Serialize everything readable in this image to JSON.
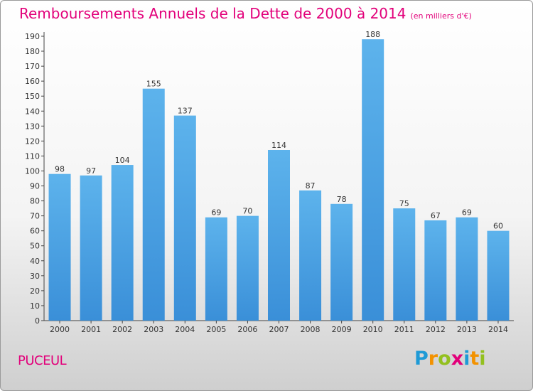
{
  "header": {
    "title": "Remboursements Annuels de la Dette de 2000 à 2014",
    "subtitle": "(en milliers d'€)"
  },
  "footer": {
    "commune": "PUCEUL",
    "logo": [
      "P",
      "r",
      "o",
      "x",
      "i",
      "t",
      "i"
    ]
  },
  "chart_data": {
    "type": "bar",
    "categories": [
      "2000",
      "2001",
      "2002",
      "2003",
      "2004",
      "2005",
      "2006",
      "2007",
      "2008",
      "2009",
      "2010",
      "2011",
      "2012",
      "2013",
      "2014"
    ],
    "values": [
      98,
      97,
      104,
      155,
      137,
      69,
      70,
      114,
      87,
      78,
      188,
      75,
      67,
      69,
      60
    ],
    "title": "Remboursements Annuels de la Dette de 2000 à 2014",
    "ylim": [
      0,
      190
    ],
    "ytick_step": 10,
    "grid": false,
    "legend": "none",
    "bar_color": "#3a8fd8",
    "bar_color_light": "#5db3ec"
  }
}
